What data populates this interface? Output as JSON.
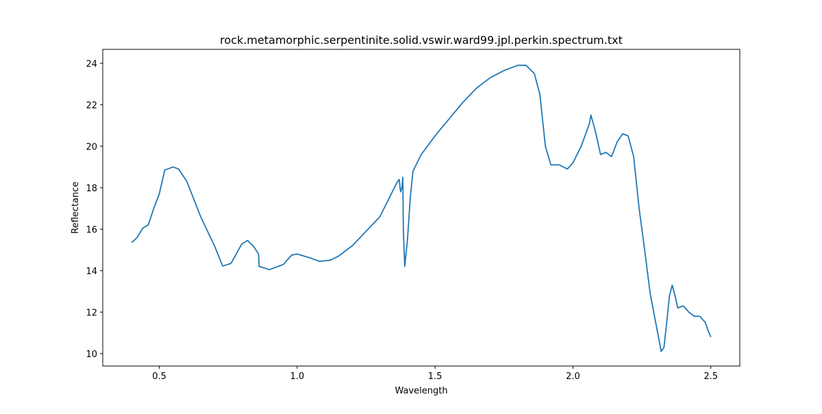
{
  "chart_data": {
    "type": "line",
    "title": "rock.metamorphic.serpentinite.solid.vswir.ward99.jpl.perkin.spectrum.txt",
    "x_label": "Wavelength",
    "y_label": "Reflectance",
    "color": "#1f77b4",
    "x": [
      0.4,
      0.42,
      0.44,
      0.46,
      0.48,
      0.5,
      0.52,
      0.55,
      0.57,
      0.6,
      0.65,
      0.7,
      0.73,
      0.76,
      0.8,
      0.82,
      0.84,
      0.86,
      0.862,
      0.9,
      0.95,
      0.98,
      1.0,
      1.05,
      1.08,
      1.12,
      1.15,
      1.2,
      1.25,
      1.3,
      1.33,
      1.36,
      1.37,
      1.375,
      1.38,
      1.383,
      1.385,
      1.39,
      1.4,
      1.41,
      1.42,
      1.45,
      1.5,
      1.55,
      1.6,
      1.65,
      1.7,
      1.75,
      1.8,
      1.83,
      1.86,
      1.88,
      1.9,
      1.92,
      1.95,
      1.98,
      2.0,
      2.03,
      2.06,
      2.065,
      2.08,
      2.1,
      2.12,
      2.14,
      2.16,
      2.18,
      2.2,
      2.22,
      2.24,
      2.26,
      2.28,
      2.3,
      2.32,
      2.33,
      2.34,
      2.35,
      2.36,
      2.37,
      2.38,
      2.4,
      2.42,
      2.44,
      2.46,
      2.48,
      2.49,
      2.5
    ],
    "values": [
      15.35,
      15.6,
      16.05,
      16.2,
      17.0,
      17.7,
      18.85,
      19.0,
      18.9,
      18.3,
      16.6,
      15.2,
      14.22,
      14.35,
      15.3,
      15.45,
      15.2,
      14.8,
      14.2,
      14.05,
      14.3,
      14.75,
      14.8,
      14.6,
      14.45,
      14.5,
      14.7,
      15.2,
      15.9,
      16.6,
      17.4,
      18.2,
      18.4,
      17.8,
      18.0,
      18.5,
      16.0,
      14.2,
      15.5,
      17.5,
      18.8,
      19.6,
      20.5,
      21.3,
      22.1,
      22.8,
      23.3,
      23.65,
      23.9,
      23.9,
      23.5,
      22.5,
      20.0,
      19.1,
      19.1,
      18.9,
      19.2,
      20.0,
      21.1,
      21.5,
      20.8,
      19.6,
      19.7,
      19.5,
      20.2,
      20.6,
      20.5,
      19.5,
      17.0,
      15.0,
      12.9,
      11.5,
      10.1,
      10.3,
      11.5,
      12.8,
      13.3,
      12.8,
      12.2,
      12.3,
      12.0,
      11.8,
      11.8,
      11.5,
      11.1,
      10.8
    ],
    "xlim": [
      0.295,
      2.605
    ],
    "xticks": [
      0.5,
      {
        "value": 1,
        "label": "1.0"
      },
      1.5,
      {
        "value": 2,
        "label": "2.0"
      },
      2.5
    ],
    "ylim": [
      9.4,
      24.67
    ],
    "yticks": [
      10,
      12,
      14,
      16,
      18,
      20,
      22,
      24
    ]
  }
}
